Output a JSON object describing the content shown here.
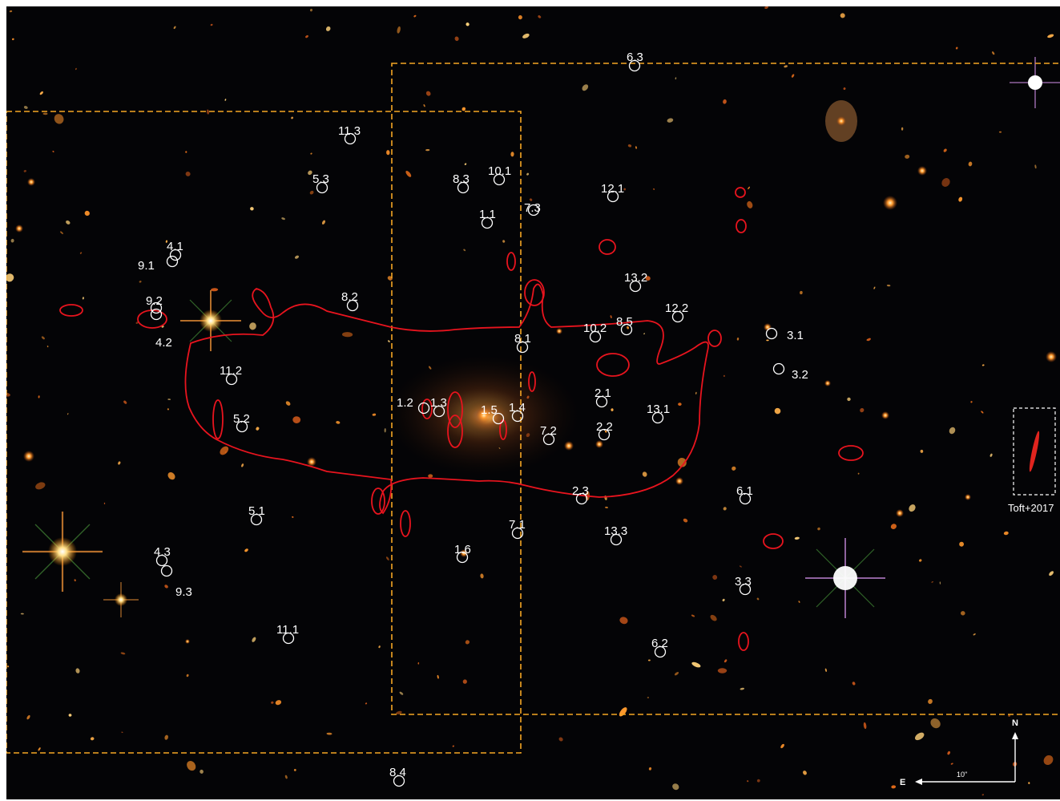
{
  "image": {
    "subject": "galaxy cluster field with lensed multiple images",
    "background_color": "#040406"
  },
  "colors": {
    "critical_curve": "#e8141e",
    "fov_outline": "#f5a623",
    "marker": "#ffffff"
  },
  "image_labels": [
    "6.3",
    "11.3",
    "5.3",
    "8.3",
    "10.1",
    "1.1",
    "7.3",
    "12.1",
    "4.1",
    "9.1",
    "9.2",
    "4.2",
    "8.2",
    "13.2",
    "12.2",
    "8.5",
    "10.2",
    "8.1",
    "3.1",
    "3.2",
    "11.2",
    "1.2",
    "1.3",
    "1.5",
    "1.4",
    "2.1",
    "13.1",
    "5.2",
    "7.2",
    "2.2",
    "2.3",
    "6.1",
    "5.1",
    "7.1",
    "13.3",
    "4.3",
    "1.6",
    "9.3",
    "3.3",
    "11.1",
    "6.2",
    "8.4"
  ],
  "inset_label": "Toft+2017",
  "compass": {
    "north": "N",
    "east": "E",
    "scale": "10\""
  }
}
